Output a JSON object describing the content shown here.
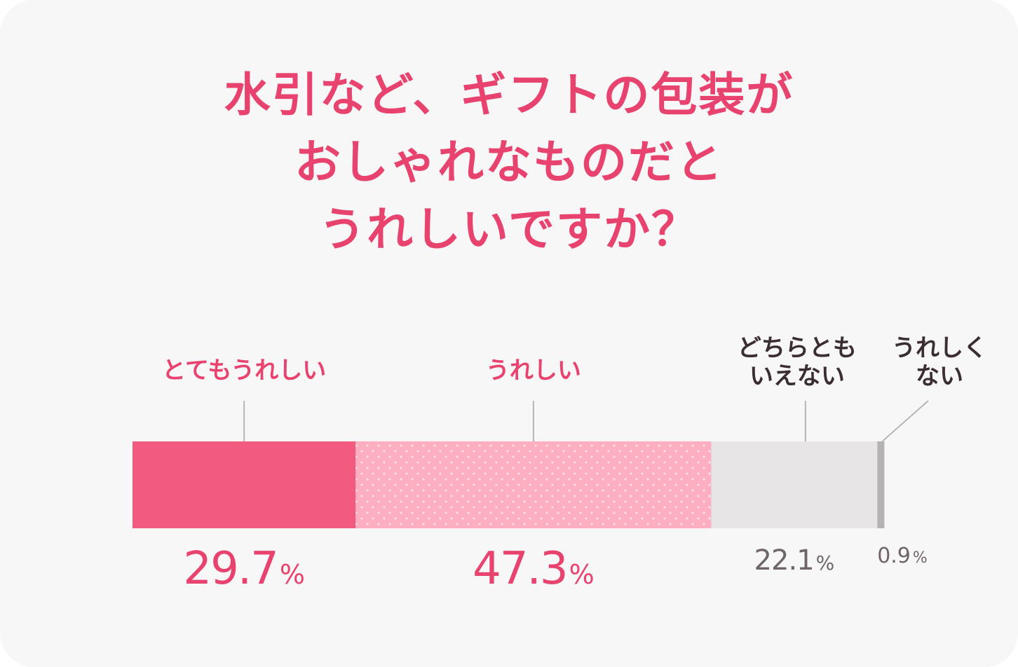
{
  "title": {
    "lines": [
      "水引など、ギフトの包装が",
      "おしゃれなものだと",
      "うれしいですか？"
    ],
    "color": "#e8436e"
  },
  "colors": {
    "background": "#f8f7f7",
    "bar_very_happy": "#f05b7e",
    "bar_happy": "#fdaec0",
    "bar_happy_dots": "#ffe5ec",
    "bar_neutral": "#e7e5e5",
    "bar_not_happy": "#b5b2b3",
    "label_pink": "#e8436e",
    "label_dark": "#3a2e33",
    "value_gray": "#6f6569",
    "leader_line": "#b9b4b6"
  },
  "chart_data": {
    "type": "bar",
    "orientation": "horizontal-stacked",
    "series": [
      {
        "name": "とてもうれしい",
        "label_lines": [
          "とてもうれしい"
        ],
        "value": 29.7,
        "value_text": "29.7",
        "pct_text": "%"
      },
      {
        "name": "うれしい",
        "label_lines": [
          "うれしい"
        ],
        "value": 47.3,
        "value_text": "47.3",
        "pct_text": "%"
      },
      {
        "name": "どちらともいえない",
        "label_lines": [
          "どちらとも",
          "いえない"
        ],
        "value": 22.1,
        "value_text": "22.1",
        "pct_text": "%"
      },
      {
        "name": "うれしくない",
        "label_lines": [
          "うれしく",
          "ない"
        ],
        "value": 0.9,
        "value_text": "0.9",
        "pct_text": "%"
      }
    ],
    "total": 100,
    "unit": "%"
  }
}
